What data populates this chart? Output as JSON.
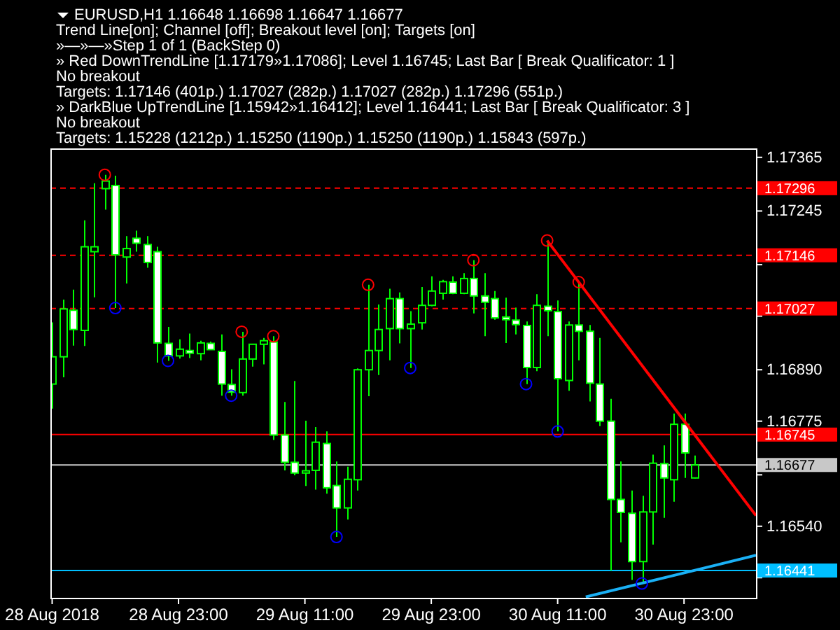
{
  "chart_data": {
    "type": "candlestick",
    "title": "EURUSD,H1 1.16648 1.16698 1.16647 1.16677",
    "annotations": [
      "Trend Line[on]; Channel [off]; Breakout level [on]; Targets [on]",
      "»—»—»Step 1 of 1 (BackStep 0)",
      "» Red DownTrendLine [1.17179»1.17086]; Level 1.16745; Last Bar [ Break Qualificator: 1 ]",
      "No breakout",
      "Targets: 1.17146 (401p.) 1.17027 (282p.) 1.17027 (282p.) 1.17296 (551p.)",
      "» DarkBlue UpTrendLine [1.15942»1.16412]; Level 1.16441; Last Bar [ Break Qualificator: 3 ]",
      "No breakout",
      "Targets: 1.15228 (1212p.) 1.15250 (1190p.) 1.15250 (1190p.) 1.15843 (597p.)"
    ],
    "xlim": [
      "2018-08-28T10:50",
      "2018-08-31T05:50"
    ],
    "xticks": [
      {
        "value": "2018-08-28T11:00",
        "label": "28 Aug 2018"
      },
      {
        "value": "2018-08-28T23:00",
        "label": "28 Aug 23:00"
      },
      {
        "value": "2018-08-29T11:00",
        "label": "29 Aug 11:00"
      },
      {
        "value": "2018-08-29T23:00",
        "label": "29 Aug 23:00"
      },
      {
        "value": "2018-08-30T11:00",
        "label": "30 Aug 11:00"
      },
      {
        "value": "2018-08-30T23:00",
        "label": "30 Aug 23:00"
      }
    ],
    "ylim": [
      1.1638,
      1.17385
    ],
    "yticks": [
      1.17365,
      1.17245,
      {
        "value": 1.17125,
        "label": null
      },
      {
        "value": 1.1701,
        "label": null
      },
      {
        "value": 1.1689,
        "label": "1.16890"
      },
      1.16775,
      {
        "value": 1.16655,
        "label": null
      },
      {
        "value": 1.1654,
        "label": "1.16540"
      },
      {
        "value": 1.16425,
        "label": null
      }
    ],
    "grid": false,
    "series": [
      {
        "color": "#00ff00",
        "x": [
          "2018-08-28T11:00",
          "2018-08-28T12:00",
          "2018-08-28T13:00",
          "2018-08-28T14:00",
          "2018-08-28T15:00",
          "2018-08-28T16:00",
          "2018-08-28T17:00",
          "2018-08-28T18:00",
          "2018-08-28T19:00",
          "2018-08-28T20:00",
          "2018-08-28T21:00",
          "2018-08-28T22:00",
          "2018-08-28T23:00",
          "2018-08-29T00:00",
          "2018-08-29T01:00",
          "2018-08-29T02:00",
          "2018-08-29T03:00",
          "2018-08-29T04:00",
          "2018-08-29T05:00",
          "2018-08-29T06:00",
          "2018-08-29T07:00",
          "2018-08-29T08:00",
          "2018-08-29T09:00",
          "2018-08-29T10:00",
          "2018-08-29T11:00",
          "2018-08-29T12:00",
          "2018-08-29T13:00",
          "2018-08-29T14:00",
          "2018-08-29T15:00",
          "2018-08-29T16:00",
          "2018-08-29T17:00",
          "2018-08-29T18:00",
          "2018-08-29T19:00",
          "2018-08-29T20:00",
          "2018-08-29T21:00",
          "2018-08-29T22:00",
          "2018-08-29T23:00",
          "2018-08-30T00:00",
          "2018-08-30T01:00",
          "2018-08-30T02:00",
          "2018-08-30T03:00",
          "2018-08-30T04:00",
          "2018-08-30T05:00",
          "2018-08-30T06:00",
          "2018-08-30T07:00",
          "2018-08-30T08:00",
          "2018-08-30T09:00",
          "2018-08-30T10:00",
          "2018-08-30T11:00",
          "2018-08-30T12:00",
          "2018-08-30T13:00",
          "2018-08-30T14:00",
          "2018-08-30T15:00",
          "2018-08-30T16:00",
          "2018-08-30T17:00",
          "2018-08-30T18:00",
          "2018-08-30T19:00",
          "2018-08-30T20:00",
          "2018-08-30T21:00",
          "2018-08-30T22:00",
          "2018-08-30T23:00",
          "2018-08-31T00:00"
        ],
        "ohlc": [
          [
            1.16858,
            1.16996,
            1.16803,
            1.16919
          ],
          [
            1.16919,
            1.17047,
            1.16873,
            1.17026
          ],
          [
            1.17023,
            1.17069,
            1.16944,
            1.1698
          ],
          [
            1.16978,
            1.17224,
            1.16943,
            1.17165
          ],
          [
            1.17154,
            1.17307,
            1.17052,
            1.17165
          ],
          [
            1.17295,
            1.17326,
            1.17248,
            1.17312
          ],
          [
            1.17302,
            1.17324,
            1.17028,
            1.17147
          ],
          [
            1.17142,
            1.17189,
            1.17083,
            1.17161
          ],
          [
            1.17184,
            1.17201,
            1.17154,
            1.17173
          ],
          [
            1.1717,
            1.17189,
            1.17118,
            1.1713
          ],
          [
            1.17154,
            1.17165,
            1.16906,
            1.1695
          ],
          [
            1.16949,
            1.16986,
            1.1691,
            1.16921
          ],
          [
            1.16921,
            1.16958,
            1.16915,
            1.16936
          ],
          [
            1.16933,
            1.16971,
            1.16916,
            1.16927
          ],
          [
            1.16926,
            1.16955,
            1.16911,
            1.1695
          ],
          [
            1.16949,
            1.16953,
            1.16934,
            1.16935
          ],
          [
            1.16931,
            1.16969,
            1.16832,
            1.16858
          ],
          [
            1.16857,
            1.16891,
            1.16832,
            1.1684
          ],
          [
            1.16839,
            1.16975,
            1.16832,
            1.16914
          ],
          [
            1.16914,
            1.16948,
            1.16897,
            1.16947
          ],
          [
            1.16947,
            1.16961,
            1.16902,
            1.16955
          ],
          [
            1.16952,
            1.16965,
            1.16733,
            1.16744
          ],
          [
            1.16744,
            1.16818,
            1.16665,
            1.16683
          ],
          [
            1.16683,
            1.16865,
            1.16654,
            1.16659
          ],
          [
            1.16659,
            1.16776,
            1.1663,
            1.16664
          ],
          [
            1.16665,
            1.16762,
            1.16622,
            1.16728
          ],
          [
            1.16725,
            1.16752,
            1.16613,
            1.16626
          ],
          [
            1.16631,
            1.16685,
            1.16516,
            1.16581
          ],
          [
            1.16581,
            1.16673,
            1.16555,
            1.16645
          ],
          [
            1.16644,
            1.16893,
            1.1662,
            1.1689
          ],
          [
            1.1689,
            1.1708,
            1.16831,
            1.16933
          ],
          [
            1.16933,
            1.17036,
            1.16878,
            1.1698
          ],
          [
            1.16982,
            1.17071,
            1.16911,
            1.17049
          ],
          [
            1.17049,
            1.17063,
            1.16949,
            1.16982
          ],
          [
            1.16982,
            1.17021,
            1.16894,
            1.16992
          ],
          [
            1.16995,
            1.17075,
            1.1698,
            1.17034
          ],
          [
            1.17034,
            1.17099,
            1.17032,
            1.17066
          ],
          [
            1.17061,
            1.17091,
            1.17047,
            1.17087
          ],
          [
            1.17086,
            1.17099,
            1.17059,
            1.17061
          ],
          [
            1.17061,
            1.17106,
            1.17059,
            1.17094
          ],
          [
            1.17094,
            1.17135,
            1.17016,
            1.17055
          ],
          [
            1.17055,
            1.17106,
            1.16965,
            1.17041
          ],
          [
            1.17049,
            1.17066,
            1.17002,
            1.17006
          ],
          [
            1.17008,
            1.17051,
            1.1695,
            1.17002
          ],
          [
            1.17001,
            1.17029,
            1.16969,
            1.16991
          ],
          [
            1.16989,
            1.16998,
            1.16858,
            1.16895
          ],
          [
            1.16895,
            1.17059,
            1.16887,
            1.17034
          ],
          [
            1.17032,
            1.17179,
            1.16965,
            1.17022
          ],
          [
            1.1702,
            1.17045,
            1.16752,
            1.1687
          ],
          [
            1.16866,
            1.16998,
            1.16843,
            1.1699
          ],
          [
            1.1699,
            1.17086,
            1.16911,
            1.16976
          ],
          [
            1.16976,
            1.1699,
            1.16819,
            1.1686
          ],
          [
            1.16858,
            1.16961,
            1.16764,
            1.16775
          ],
          [
            1.16775,
            1.16825,
            1.16441,
            1.166
          ],
          [
            1.166,
            1.16685,
            1.16504,
            1.16571
          ],
          [
            1.16569,
            1.1662,
            1.1642,
            1.16461
          ],
          [
            1.16461,
            1.16608,
            1.16412,
            1.16572
          ],
          [
            1.16572,
            1.167,
            1.16499,
            1.16681
          ],
          [
            1.1668,
            1.16721,
            1.16559,
            1.16648
          ],
          [
            1.16644,
            1.16792,
            1.16595,
            1.16768
          ],
          [
            1.16768,
            1.16792,
            1.16648,
            1.16704
          ],
          [
            1.16648,
            1.16698,
            1.16647,
            1.16677
          ]
        ]
      },
      {
        "type": "line",
        "color": "#ff0000",
        "x": [
          "2018-08-30T10:00",
          "2018-08-31T05:50"
        ],
        "values": [
          1.17179,
          1.16564
        ]
      },
      {
        "type": "line",
        "color": "#1ab0f5",
        "x": [
          "2018-08-30T13:40",
          "2018-08-31T05:50"
        ],
        "values": [
          1.16382,
          1.16475
        ]
      },
      {
        "type": "scatter",
        "marker": "circle",
        "color": "#ff0000",
        "x": [
          "2018-08-28T16:00",
          "2018-08-29T05:00",
          "2018-08-29T08:00",
          "2018-08-29T17:00",
          "2018-08-30T03:00",
          "2018-08-30T10:00",
          "2018-08-30T13:00"
        ],
        "values": [
          1.17326,
          1.16975,
          1.16965,
          1.1708,
          1.17135,
          1.17179,
          1.17086
        ]
      },
      {
        "type": "scatter",
        "marker": "circle",
        "color": "#0000ff",
        "x": [
          "2018-08-28T17:00",
          "2018-08-28T22:00",
          "2018-08-29T04:00",
          "2018-08-29T14:00",
          "2018-08-29T21:00",
          "2018-08-30T08:00",
          "2018-08-30T11:00",
          "2018-08-30T19:00"
        ],
        "values": [
          1.17028,
          1.1691,
          1.16832,
          1.16516,
          1.16894,
          1.16858,
          1.16752,
          1.16412
        ]
      }
    ],
    "ref_lines": [
      {
        "axis": "y",
        "value": 1.17296,
        "label": "1.17296",
        "color": "#ff0000",
        "line_style": "dashed"
      },
      {
        "axis": "y",
        "value": 1.17146,
        "label": "1.17146",
        "color": "#ff0000",
        "line_style": "dashed"
      },
      {
        "axis": "y",
        "value": 1.17027,
        "label": "1.17027",
        "color": "#ff0000",
        "line_style": "dashed"
      },
      {
        "axis": "y",
        "value": 1.16745,
        "label": "1.16745",
        "color": "#ff0000",
        "line_style": "solid"
      },
      {
        "axis": "y",
        "value": 1.16677,
        "label": "1.16677",
        "color": "#c8c8c8",
        "line_style": "solid"
      },
      {
        "axis": "y",
        "value": 1.16441,
        "label": "1.16441",
        "color": "#00bfff",
        "line_style": "solid"
      }
    ]
  }
}
